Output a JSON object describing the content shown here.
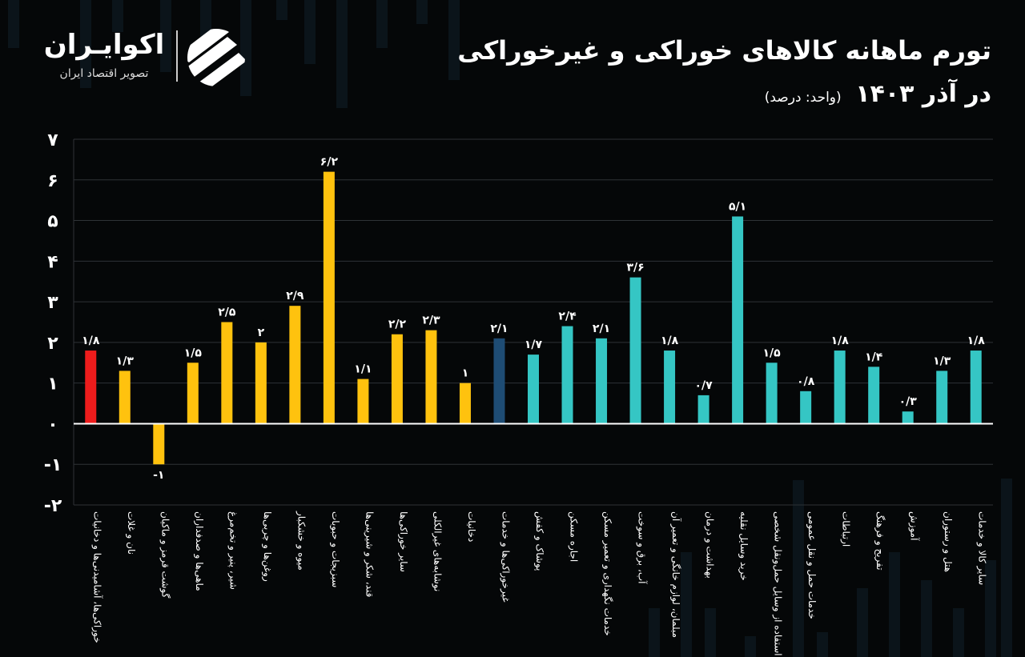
{
  "header": {
    "title": "تورم ماهانه کالاهای خوراکی و غیرخوراکی",
    "subtitle_main": "در آذر ۱۴۰۳",
    "subtitle_unit": "(واحد: درصد)"
  },
  "brand": {
    "name": "اکوایـران",
    "tagline": "تصویر اقتصاد ایران",
    "logo_icon": "ecoiran-stripes-logo"
  },
  "colors": {
    "background": "#050708",
    "headline": "#ee1c1c",
    "food": "#ffc20e",
    "nonfood_headline": "#1e4c74",
    "nonfood": "#35c6c4",
    "grid": "#2e3236"
  },
  "chart_data": {
    "type": "bar",
    "title": "تورم ماهانه کالاهای خوراکی و غیرخوراکی در آذر ۱۴۰۳",
    "ylabel": "",
    "unit": "درصد",
    "ylim": [
      -2,
      7
    ],
    "y_ticks": [
      -2,
      -1,
      0,
      1,
      2,
      3,
      4,
      5,
      6,
      7
    ],
    "y_tick_labels": [
      "-۲",
      "-۱",
      "۰",
      "۱",
      "۲",
      "۳",
      "۴",
      "۵",
      "۶",
      "۷"
    ],
    "grid": true,
    "categories": [
      "خوراکی‌ها، آشامیدنی‌ها و دخانیات",
      "نان و غلات",
      "گوشت قرمز و ماکیان",
      "ماهی‌ها و صدفداران",
      "شیر، پنیر و تخم‌مرغ",
      "روغن‌ها و چربی‌ها",
      "میوه و خشکبار",
      "سبزیجات و حبوبات",
      "قند، شکر و شیرینی‌ها",
      "سایر خوراکی‌ها",
      "نوشابه‌های غیرالکلی",
      "دخانیات",
      "غیرخوراکی‌ها و خدمات",
      "پوشاک و کفش",
      "اجاره مسکن",
      "خدمات نگهداری و تعمیر مسکن",
      "آب، برق و سوخت",
      "مبلمان، لوازم خانگی و تعمیر آن",
      "بهداشت و درمان",
      "خرید وسایل نقلیه",
      "استفاده از وسایل حمل‌ونقل شخصی",
      "خدمات حمل و نقل عمومی",
      "ارتباطات",
      "تفریح و فرهنگ",
      "آموزش",
      "هتل و رستوران",
      "سایر کالا و خدمات"
    ],
    "values": [
      1.8,
      1.3,
      -1,
      1.5,
      2.5,
      2,
      2.9,
      6.2,
      1.1,
      2.2,
      2.3,
      1,
      2.1,
      1.7,
      2.4,
      2.1,
      3.6,
      1.8,
      0.7,
      5.1,
      1.5,
      0.8,
      1.8,
      1.4,
      0.3,
      1.3,
      1.8
    ],
    "value_labels": [
      "۱/۸",
      "۱/۳",
      "-۱",
      "۱/۵",
      "۲/۵",
      "۲",
      "۲/۹",
      "۶/۲",
      "۱/۱",
      "۲/۲",
      "۲/۳",
      "۱",
      "۲/۱",
      "۱/۷",
      "۲/۴",
      "۲/۱",
      "۳/۶",
      "۱/۸",
      "۰/۷",
      "۵/۱",
      "۱/۵",
      "۰/۸",
      "۱/۸",
      "۱/۴",
      "۰/۳",
      "۱/۳",
      "۱/۸"
    ],
    "groups": [
      "headline",
      "food",
      "food",
      "food",
      "food",
      "food",
      "food",
      "food",
      "food",
      "food",
      "food",
      "food",
      "nonfood_headline",
      "nonfood",
      "nonfood",
      "nonfood",
      "nonfood",
      "nonfood",
      "nonfood",
      "nonfood",
      "nonfood",
      "nonfood",
      "nonfood",
      "nonfood",
      "nonfood",
      "nonfood",
      "nonfood"
    ]
  }
}
